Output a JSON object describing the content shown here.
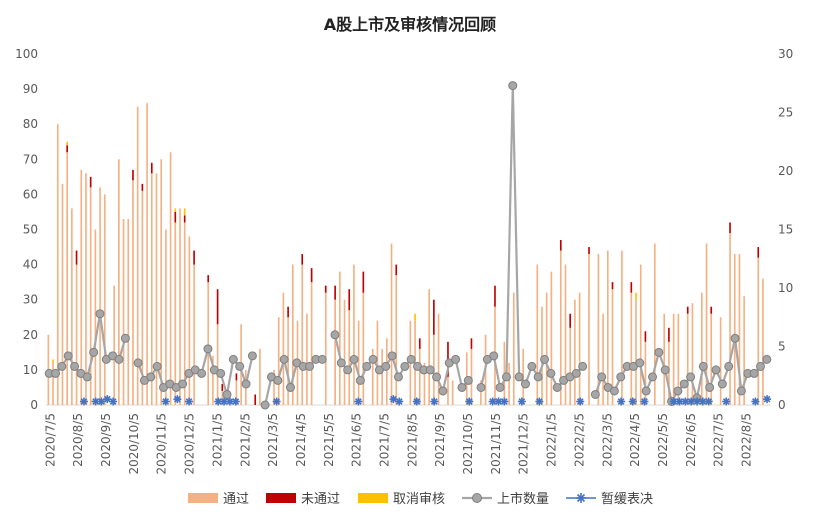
{
  "chart_data": {
    "type": "bar",
    "title": "A股上市及审核情况回顾",
    "xlabel": "",
    "ylabel_left": "",
    "ylabel_right": "",
    "ylim_left": [
      0,
      100
    ],
    "ylim_right": [
      0,
      30
    ],
    "y_ticks_left": [
      0,
      10,
      20,
      30,
      40,
      50,
      60,
      70,
      80,
      90,
      100
    ],
    "y_ticks_right": [
      0,
      5,
      10,
      15,
      20,
      25,
      30
    ],
    "x_tick_labels": [
      "2020/7/5",
      "2020/8/5",
      "2020/9/5",
      "2020/10/5",
      "2020/11/5",
      "2020/12/5",
      "2021/1/5",
      "2021/2/5",
      "2021/3/5",
      "2021/4/5",
      "2021/5/5",
      "2021/6/5",
      "2021/7/5",
      "2021/8/5",
      "2021/9/5",
      "2021/10/5",
      "2021/11/5",
      "2021/12/5",
      "2022/1/5",
      "2022/2/5",
      "2022/3/5",
      "2022/4/5",
      "2022/5/5",
      "2022/6/5",
      "2022/7/5",
      "2022/8/5"
    ],
    "grid": false,
    "legend_position": "bottom",
    "colors": {
      "passed": "#F4B183",
      "failed": "#C00000",
      "cancelled": "#FFC000",
      "listed": "#A6A6A6",
      "suspended": "#4472C4"
    },
    "series": [
      {
        "name": "通过",
        "axis": "left",
        "kind": "bar",
        "color": "#F4B183",
        "values": [
          20,
          12,
          80,
          63,
          72,
          56,
          40,
          67,
          66,
          62,
          50,
          62,
          60,
          0,
          34,
          70,
          53,
          53,
          64,
          85,
          61,
          86,
          66,
          66,
          70,
          50,
          72,
          52,
          56,
          52,
          48,
          40,
          0,
          0,
          35,
          14,
          23,
          4,
          0,
          0,
          7,
          23,
          10,
          0,
          0,
          16,
          0,
          0,
          10,
          25,
          32,
          25,
          40,
          24,
          40,
          26,
          35,
          0,
          0,
          32,
          0,
          30,
          38,
          30,
          27,
          40,
          24,
          32,
          0,
          16,
          24,
          16,
          19,
          46,
          37,
          0,
          0,
          24,
          24,
          16,
          12,
          33,
          20,
          26,
          0,
          8,
          7,
          0,
          0,
          15,
          16,
          0,
          7,
          20,
          0,
          28,
          0,
          18,
          12,
          32,
          0,
          16,
          0,
          0,
          40,
          28,
          32,
          38,
          0,
          44,
          40,
          22,
          30,
          32,
          0,
          43,
          0,
          43,
          26,
          44,
          33,
          0,
          44,
          0,
          32,
          30,
          40,
          18,
          0,
          46,
          0,
          26,
          18,
          26,
          26,
          0,
          26,
          29,
          0,
          32,
          46,
          26,
          0,
          25,
          0,
          49,
          43,
          43,
          31,
          0,
          0,
          42,
          36,
          0
        ]
      },
      {
        "name": "未通过",
        "axis": "left",
        "kind": "bar",
        "color": "#C00000",
        "values": [
          0,
          0,
          0,
          0,
          2,
          0,
          4,
          0,
          0,
          3,
          0,
          0,
          0,
          0,
          0,
          0,
          0,
          0,
          3,
          0,
          2,
          0,
          3,
          0,
          0,
          0,
          0,
          3,
          0,
          2,
          0,
          4,
          0,
          0,
          2,
          0,
          10,
          2,
          0,
          0,
          2,
          0,
          0,
          0,
          3,
          0,
          0,
          0,
          0,
          0,
          0,
          3,
          0,
          0,
          3,
          0,
          4,
          0,
          0,
          2,
          0,
          4,
          0,
          0,
          6,
          0,
          0,
          6,
          0,
          0,
          0,
          0,
          0,
          0,
          3,
          0,
          0,
          0,
          0,
          3,
          0,
          0,
          10,
          0,
          0,
          10,
          0,
          0,
          0,
          0,
          3,
          0,
          0,
          0,
          0,
          6,
          0,
          0,
          0,
          0,
          0,
          0,
          0,
          0,
          0,
          0,
          0,
          0,
          0,
          3,
          0,
          4,
          0,
          0,
          0,
          2,
          0,
          0,
          0,
          0,
          2,
          0,
          0,
          0,
          3,
          0,
          0,
          3,
          0,
          0,
          0,
          0,
          4,
          0,
          0,
          0,
          2,
          0,
          0,
          0,
          0,
          2,
          0,
          0,
          0,
          3,
          0,
          0,
          0,
          0,
          0,
          3,
          0,
          0
        ]
      },
      {
        "name": "取消审核",
        "axis": "left",
        "kind": "bar",
        "color": "#FFC000",
        "values": [
          0,
          1,
          0,
          0,
          1,
          0,
          0,
          0,
          0,
          0,
          0,
          0,
          0,
          0,
          0,
          0,
          0,
          0,
          0,
          0,
          0,
          0,
          0,
          0,
          0,
          0,
          0,
          1,
          0,
          2,
          0,
          0,
          0,
          0,
          0,
          0,
          0,
          0,
          0,
          0,
          0,
          0,
          0,
          0,
          0,
          0,
          0,
          0,
          0,
          0,
          0,
          0,
          0,
          0,
          0,
          0,
          0,
          0,
          0,
          0,
          0,
          0,
          0,
          0,
          0,
          0,
          0,
          0,
          0,
          0,
          0,
          0,
          0,
          0,
          0,
          0,
          0,
          0,
          2,
          0,
          0,
          0,
          0,
          0,
          0,
          0,
          0,
          0,
          0,
          0,
          0,
          0,
          0,
          0,
          0,
          0,
          0,
          0,
          0,
          0,
          0,
          0,
          0,
          0,
          0,
          0,
          0,
          0,
          0,
          0,
          0,
          0,
          0,
          0,
          0,
          0,
          0,
          0,
          0,
          0,
          0,
          0,
          0,
          0,
          0,
          2,
          0,
          0,
          0,
          0,
          0,
          0,
          0,
          0,
          0,
          0,
          0,
          0,
          0,
          0,
          0,
          0,
          0,
          0,
          0,
          0,
          0,
          0,
          0,
          0,
          0,
          0,
          0,
          0
        ]
      },
      {
        "name": "上市数量",
        "axis": "right",
        "kind": "line",
        "color": "#A6A6A6",
        "values": [
          2.7,
          2.7,
          3.3,
          4.2,
          3.3,
          2.7,
          2.4,
          4.5,
          7.8,
          3.9,
          4.2,
          3.9,
          5.7,
          null,
          3.6,
          2.1,
          2.4,
          3.3,
          1.5,
          1.8,
          1.5,
          1.8,
          2.7,
          3.0,
          2.7,
          4.8,
          3.0,
          2.7,
          0.9,
          3.9,
          3.3,
          1.8,
          4.2,
          null,
          0.0,
          2.4,
          2.1,
          3.9,
          1.5,
          3.6,
          3.3,
          3.3,
          3.9,
          3.9,
          null,
          6.0,
          3.6,
          3.0,
          3.9,
          2.1,
          3.3,
          3.9,
          3.0,
          3.3,
          4.2,
          2.4,
          3.3,
          3.9,
          3.3,
          3.0,
          3.0,
          2.4,
          1.2,
          3.6,
          3.9,
          1.5,
          2.1,
          null,
          1.5,
          3.9,
          4.2,
          1.5,
          2.4,
          27.3,
          2.4,
          1.8,
          3.3,
          2.4,
          3.9,
          2.7,
          1.5,
          2.1,
          2.4,
          2.7,
          3.3,
          null,
          0.9,
          2.4,
          1.5,
          1.2,
          2.4,
          3.3,
          3.3,
          3.6,
          1.2,
          2.4,
          4.5,
          3.0,
          0.3,
          1.2,
          1.8,
          2.4,
          0.6,
          3.3,
          1.5,
          3.0,
          1.8,
          3.3,
          5.7,
          1.2,
          2.7,
          2.7,
          3.3,
          3.9
        ]
      },
      {
        "name": "暂缓表决",
        "axis": "right",
        "kind": "marker",
        "color": "#4472C4",
        "values": [
          null,
          null,
          null,
          null,
          null,
          null,
          0.3,
          null,
          0.3,
          0.3,
          0.5,
          0.3,
          null,
          null,
          null,
          null,
          null,
          null,
          null,
          null,
          0.3,
          null,
          0.5,
          null,
          0.3,
          null,
          null,
          null,
          null,
          0.3,
          0.3,
          0.3,
          0.3,
          null,
          null,
          null,
          null,
          null,
          null,
          0.3,
          null,
          null,
          null,
          null,
          null,
          null,
          null,
          null,
          null,
          null,
          null,
          null,
          null,
          0.3,
          null,
          null,
          null,
          null,
          null,
          0.5,
          0.3,
          null,
          null,
          0.3,
          null,
          null,
          0.3,
          null,
          null,
          null,
          null,
          null,
          0.3,
          null,
          null,
          null,
          0.3,
          0.3,
          0.3,
          null,
          null,
          0.3,
          null,
          null,
          0.3,
          null,
          null,
          null,
          null,
          null,
          null,
          0.3,
          null,
          null,
          null,
          null,
          null,
          null,
          0.3,
          null,
          0.3,
          null,
          0.3,
          null,
          null,
          null,
          null,
          0.3,
          0.3,
          0.3,
          0.3,
          0.3,
          0.3,
          0.3,
          null,
          null,
          0.3,
          null,
          null,
          null,
          null,
          0.3,
          null,
          0.5
        ]
      }
    ],
    "legend": [
      {
        "name": "通过",
        "kind": "bar",
        "color": "#F4B183"
      },
      {
        "name": "未通过",
        "kind": "bar",
        "color": "#C00000"
      },
      {
        "name": "取消审核",
        "kind": "bar",
        "color": "#FFC000"
      },
      {
        "name": "上市数量",
        "kind": "line",
        "color": "#A6A6A6"
      },
      {
        "name": "暂缓表决",
        "kind": "marker",
        "color": "#4472C4"
      }
    ]
  }
}
